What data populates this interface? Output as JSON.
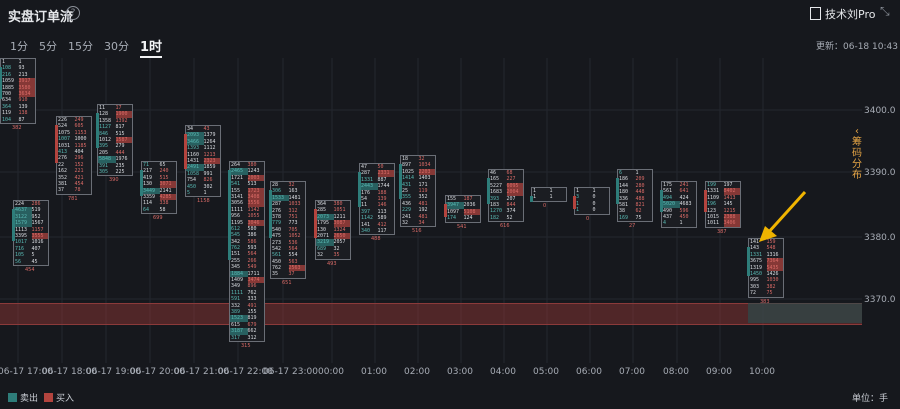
{
  "header": {
    "title": "实盘订单流",
    "help_icon": "question-icon",
    "pro_label": "技术刘Pro",
    "pro_icon": "document-icon",
    "expand_icon": "collapse-icon"
  },
  "tabs": [
    {
      "label": "1分"
    },
    {
      "label": "5分"
    },
    {
      "label": "15分"
    },
    {
      "label": "30分"
    },
    {
      "label": "1时",
      "active": true
    }
  ],
  "updated": "更新：06-18 10:43",
  "side_panel": {
    "chevron": "‹",
    "label": "筹码分布"
  },
  "y_axis": {
    "labels": [
      "3400.0",
      "3390.0",
      "3380.0",
      "3370.0"
    ]
  },
  "x_axis": {
    "labels": [
      "06-17 17:00",
      "06-17 18:00",
      "06-17 19:00",
      "06-17 20:00",
      "06-17 21:00",
      "06-17 22:00",
      "06-17 23:00",
      "00:00",
      "01:00",
      "02:00",
      "03:00",
      "04:00",
      "05:00",
      "06:00",
      "07:00",
      "08:00",
      "09:00",
      "10:00"
    ]
  },
  "legend": {
    "sell": "卖出",
    "buy": "买入",
    "sell_color": "#2e7d7a",
    "buy_color": "#b3443e"
  },
  "unit": "单位：手",
  "candles": [
    {
      "delta": "454",
      "rows": [
        "224|286",
        "4637|519",
        "3122|952",
        "1579|1567",
        "1113|1157",
        "3395|3555",
        "1017|1016",
        "716|407",
        "105|5",
        "56|45"
      ]
    },
    {
      "delta": "781",
      "rows": [
        "226|249",
        "524|605",
        "1075|1153",
        "1007|1000",
        "1031|1185",
        "413|404",
        "276|296",
        "22|152",
        "162|221",
        "352|421",
        "381|454",
        "37|78"
      ]
    },
    {
      "delta": "390",
      "rows": [
        "11|17",
        "128|1900",
        "1358|1392",
        "1127|817",
        "846|515",
        "1012|1587",
        "395|279",
        "205|444",
        "5848|1976",
        "391|235",
        "305|225"
      ]
    },
    {
      "delta": "699",
      "rows": [
        "71|65",
        "217|240",
        "419|515",
        "130|3071",
        "3449|2141",
        "3359|4285",
        "114|338",
        "64|58"
      ]
    },
    {
      "delta": "1158",
      "rows": [
        "34|43",
        "2093|1379",
        "3466|1264",
        "1393|1112",
        "1160|1213",
        "1431|2323",
        "2491|1859",
        "1058|991",
        "754|826",
        "450|302",
        "5|1"
      ]
    },
    {
      "delta": "315",
      "rows": [
        "264|380",
        "2465|1243",
        "1721|2003",
        "541|513",
        "155|1723",
        "3141|3408",
        "3056|3556",
        "1111|1142",
        "956|1055",
        "1195|3046",
        "612|580",
        "545|386",
        "342|586",
        "762|593",
        "151|564",
        "255|266",
        "345|549",
        "1884|1711",
        "1409|3474",
        "349|896",
        "1111|762",
        "591|333",
        "332|491",
        "389|155",
        "1523|819",
        "615|679",
        "3187|662",
        "317|312"
      ]
    },
    {
      "delta": "651",
      "rows": [
        "28|32",
        "306|163",
        "1533|1481",
        "287|1033",
        "276|312",
        "378|751",
        "779|773",
        "540|705",
        "475|1052",
        "273|536",
        "542|564",
        "561|554",
        "450|563",
        "762|2563",
        "35|37"
      ]
    },
    {
      "delta": "493",
      "rows": [
        "364|380",
        "285|1051",
        "2073|1211",
        "1795|3087",
        "130|1324",
        "2071|2650",
        "3219|2057",
        "689|32",
        "32|35"
      ]
    },
    {
      "delta": "488",
      "rows": [
        "47|50",
        "287|2331",
        "1331|887",
        "2443|1744",
        "176|188",
        "54|139",
        "11|146",
        "397|113",
        "1142|589",
        "141|412",
        "340|117"
      ]
    },
    {
      "delta": "516",
      "rows": [
        "18|32",
        "897|1034",
        "1025|2203",
        "1414|1403",
        "431|171",
        "25|119",
        "355|352",
        "436|481",
        "229|192",
        "241|481",
        "32|34"
      ]
    },
    {
      "delta": "541",
      "rows": [
        "155|187",
        "3947|2036",
        "1097|5108",
        "174|124"
      ]
    },
    {
      "delta": "616",
      "rows": [
        "46|68",
        "165|227",
        "5227|6095",
        "1683|2004",
        "393|207",
        "183|844",
        "1270|374",
        "182|52"
      ]
    },
    {
      "delta": "0",
      "rows": [
        "1|1",
        "1|1"
      ]
    },
    {
      "delta": "0",
      "rows": [
        "1|1",
        "3|0",
        "1|0",
        "1|0"
      ]
    },
    {
      "delta": "27",
      "rows": [
        "6|1",
        "186|209",
        "144|280",
        "180|448",
        "336|488",
        "581|821",
        "38|62",
        "169|75"
      ]
    },
    {
      "delta": "",
      "rows": [
        "175|241",
        "561|641",
        "494|424",
        "5020|4683",
        "490|596",
        "437|450",
        "4|1"
      ]
    },
    {
      "delta": "387",
      "rows": [
        "199|197",
        "1331|8402",
        "1109|1413",
        "196|145",
        "123|1215",
        "1015|2388",
        "1011|3406"
      ]
    },
    {
      "delta": "383",
      "rows": [
        "141|159",
        "143|548",
        "1331|1316",
        "3675|7364",
        "1319|5435",
        "1450|1426",
        "995|1030",
        "303|382",
        "72|75"
      ]
    },
    {
      "delta": "382",
      "rows": [
        "1|1",
        "108|93",
        "216|213",
        "1059|3917",
        "1885|3580",
        "700|3634",
        "634|910",
        "364|139",
        "119|138",
        "104|87"
      ]
    }
  ]
}
